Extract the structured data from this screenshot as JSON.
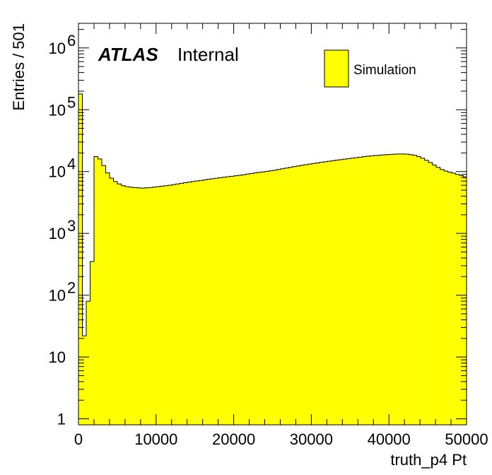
{
  "chart_data": {
    "type": "bar",
    "histogram": true,
    "xlabel": "truth_p4 Pt",
    "ylabel": "Entries / 501",
    "xlim": [
      0,
      50000
    ],
    "ylim": [
      0.8,
      2500000
    ],
    "yscale": "log",
    "bin_width": 501,
    "fill_color": "#ffff00",
    "line_color": "#000000",
    "x_ticks": [
      "0",
      "10000",
      "20000",
      "30000",
      "40000",
      "50000"
    ],
    "y_ticks": [
      {
        "value": 1,
        "base": "1",
        "exp": ""
      },
      {
        "value": 10,
        "base": "10",
        "exp": ""
      },
      {
        "value": 100,
        "base": "10",
        "exp": "2"
      },
      {
        "value": 1000,
        "base": "10",
        "exp": "3"
      },
      {
        "value": 10000,
        "base": "10",
        "exp": "4"
      },
      {
        "value": 100000,
        "base": "10",
        "exp": "5"
      },
      {
        "value": 1000000,
        "base": "10",
        "exp": "6"
      }
    ],
    "label_atlas": "ATLAS",
    "label_internal": "Internal",
    "legend_position": "top-right",
    "series": [
      {
        "name": "Simulation",
        "x": [
          0,
          501,
          1002,
          1503,
          2004,
          2505,
          3006,
          3507,
          4008,
          4509,
          5010,
          5511,
          6012,
          6513,
          7014,
          7515,
          8016,
          8517,
          9018,
          9519,
          10020,
          10521,
          11022,
          11523,
          12024,
          12525,
          13026,
          13527,
          14028,
          14529,
          15030,
          15531,
          16032,
          16533,
          17034,
          17535,
          18036,
          18537,
          19038,
          19539,
          20040,
          20541,
          21042,
          21543,
          22044,
          22545,
          23046,
          23547,
          24048,
          24549,
          25050,
          25551,
          26052,
          26553,
          27054,
          27555,
          28056,
          28557,
          29058,
          29559,
          30060,
          30561,
          31062,
          31563,
          32064,
          32565,
          33066,
          33567,
          34068,
          34569,
          35070,
          35571,
          36072,
          36573,
          37074,
          37575,
          38076,
          38577,
          39078,
          39579,
          40080,
          40581,
          41082,
          41583,
          42084,
          42585,
          43086,
          43587,
          44088,
          44589,
          45090,
          45591,
          46092,
          46593,
          47094,
          47595,
          48096,
          48597,
          49098,
          49599
        ],
        "values": [
          180000,
          22,
          80,
          350,
          17500,
          16000,
          12500,
          9500,
          7800,
          6900,
          6300,
          5900,
          5700,
          5600,
          5500,
          5450,
          5400,
          5450,
          5500,
          5600,
          5700,
          5800,
          5900,
          6000,
          6150,
          6300,
          6450,
          6600,
          6750,
          6900,
          7050,
          7200,
          7350,
          7500,
          7650,
          7800,
          7950,
          8100,
          8250,
          8400,
          8550,
          8700,
          8900,
          9100,
          9300,
          9500,
          9700,
          9900,
          10100,
          10300,
          10500,
          10800,
          11100,
          11400,
          11700,
          12000,
          12300,
          12600,
          12900,
          13200,
          13500,
          13800,
          14100,
          14400,
          14700,
          15000,
          15300,
          15600,
          15900,
          16200,
          16500,
          16800,
          17100,
          17400,
          17700,
          18000,
          18200,
          18400,
          18600,
          18800,
          19000,
          19100,
          19200,
          19200,
          19100,
          18800,
          18300,
          17500,
          16400,
          15200,
          14000,
          12800,
          11700,
          10800,
          10200,
          9800,
          9400,
          9000,
          8600,
          8200
        ]
      }
    ]
  }
}
